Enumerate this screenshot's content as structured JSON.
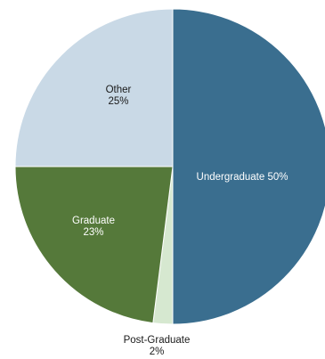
{
  "chart_data": {
    "type": "pie",
    "title": "",
    "slices": [
      {
        "label": "Undergraduate",
        "value": 50,
        "value_text": "50%",
        "color": "#3a6e8f"
      },
      {
        "label": "Post-Graduate",
        "value": 2,
        "value_text": "2%",
        "color": "#d6e8d0"
      },
      {
        "label": "Graduate",
        "value": 23,
        "value_text": "23%",
        "color": "#55793a"
      },
      {
        "label": "Other",
        "value": 25,
        "value_text": "25%",
        "color": "#c9d9e6"
      }
    ],
    "start_angle": "12 o'clock",
    "direction": "clockwise",
    "legend": "none"
  }
}
